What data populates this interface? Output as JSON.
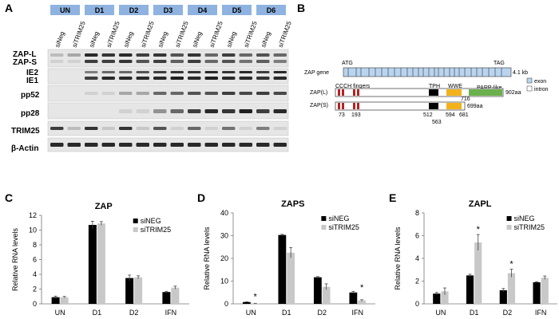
{
  "panel_letters": [
    "A",
    "B",
    "C",
    "D",
    "E"
  ],
  "blot": {
    "group_headers": [
      "UN",
      "D1",
      "D2",
      "D3",
      "D4",
      "D5",
      "D6"
    ],
    "lane_labels": [
      "siNeg",
      "siTRIM25",
      "siNeg",
      "siTRIM25",
      "siNeg",
      "siTRIM25",
      "siNeg",
      "siTRIM25",
      "siNeg",
      "siTRIM25",
      "siNeg",
      "siTRIM25",
      "siNeg",
      "siTRIM25"
    ],
    "row_labels": [
      "ZAP-L",
      "ZAP-S",
      "IE2",
      "IE1",
      "pp52",
      "pp28",
      "TRIM25",
      "β-Actin"
    ],
    "header_color": "#8fb3e0"
  },
  "gene_diagram": {
    "gene_label": "ZAP gene",
    "atg": "ATG",
    "tag": "TAG",
    "size": "4.1 kb",
    "legend": [
      "exon",
      "intron"
    ],
    "domains": [
      "CCCH fingers",
      "TPH",
      "WWE",
      "PARP-like"
    ],
    "zapl_label": "ZAP(L)",
    "zaps_label": "ZAP(S)",
    "zapl_len": "902aa",
    "zaps_len": "699aa",
    "positions": [
      "73",
      "193",
      "512",
      "563",
      "594",
      "681",
      "716"
    ],
    "colors": {
      "exon": "#b9d4ef",
      "finger": "#b22222",
      "tph": "#000000",
      "wwe": "#f2b21c",
      "parp": "#6ab04c"
    }
  },
  "chart_data": [
    {
      "type": "bar",
      "panel": "C",
      "title": "ZAP",
      "ylabel": "Relative RNA levels",
      "categories": [
        "UN",
        "D1",
        "D2",
        "IFN"
      ],
      "ylim": [
        0,
        12
      ],
      "yticks": [
        "0",
        "2",
        "4",
        "6",
        "8",
        "10",
        "12"
      ],
      "series": [
        {
          "name": "siNEG",
          "color": "#000000",
          "values": [
            0.9,
            10.7,
            3.5,
            1.6
          ],
          "errors": [
            0.15,
            0.5,
            0.4,
            0.1
          ]
        },
        {
          "name": "siTRIM25",
          "color": "#c8c8c8",
          "values": [
            0.9,
            10.9,
            3.6,
            2.2
          ],
          "errors": [
            0.1,
            0.25,
            0.2,
            0.2
          ]
        }
      ],
      "significance": []
    },
    {
      "type": "bar",
      "panel": "D",
      "title": "ZAPS",
      "ylabel": "Relative RNA levels",
      "categories": [
        "UN",
        "D1",
        "D2",
        "IFN"
      ],
      "ylim": [
        0,
        40
      ],
      "yticks": [
        "0",
        "10",
        "20",
        "30",
        "40"
      ],
      "series": [
        {
          "name": "siNEG",
          "color": "#000000",
          "values": [
            0.8,
            30.3,
            11.7,
            5.0
          ],
          "errors": [
            0.1,
            0.3,
            0.3,
            0.5
          ]
        },
        {
          "name": "siTRIM25",
          "color": "#c8c8c8",
          "values": [
            0.2,
            22.5,
            7.5,
            1.5
          ],
          "errors": [
            0.05,
            2.3,
            1.3,
            0.3
          ]
        }
      ],
      "significance": [
        "*",
        "",
        "",
        "*"
      ]
    },
    {
      "type": "bar",
      "panel": "E",
      "title": "ZAPL",
      "ylabel": "Relative RNA levels",
      "categories": [
        "UN",
        "D1",
        "D2",
        "IFN"
      ],
      "ylim": [
        0,
        8
      ],
      "yticks": [
        "0",
        "2",
        "4",
        "6",
        "8"
      ],
      "series": [
        {
          "name": "siNEG",
          "color": "#000000",
          "values": [
            0.9,
            2.5,
            1.2,
            1.9
          ],
          "errors": [
            0.1,
            0.1,
            0.15,
            0.05
          ]
        },
        {
          "name": "siTRIM25",
          "color": "#c8c8c8",
          "values": [
            1.1,
            5.4,
            2.7,
            2.3
          ],
          "errors": [
            0.3,
            0.7,
            0.35,
            0.15
          ]
        }
      ],
      "significance": [
        "",
        "*",
        "*",
        ""
      ]
    }
  ]
}
